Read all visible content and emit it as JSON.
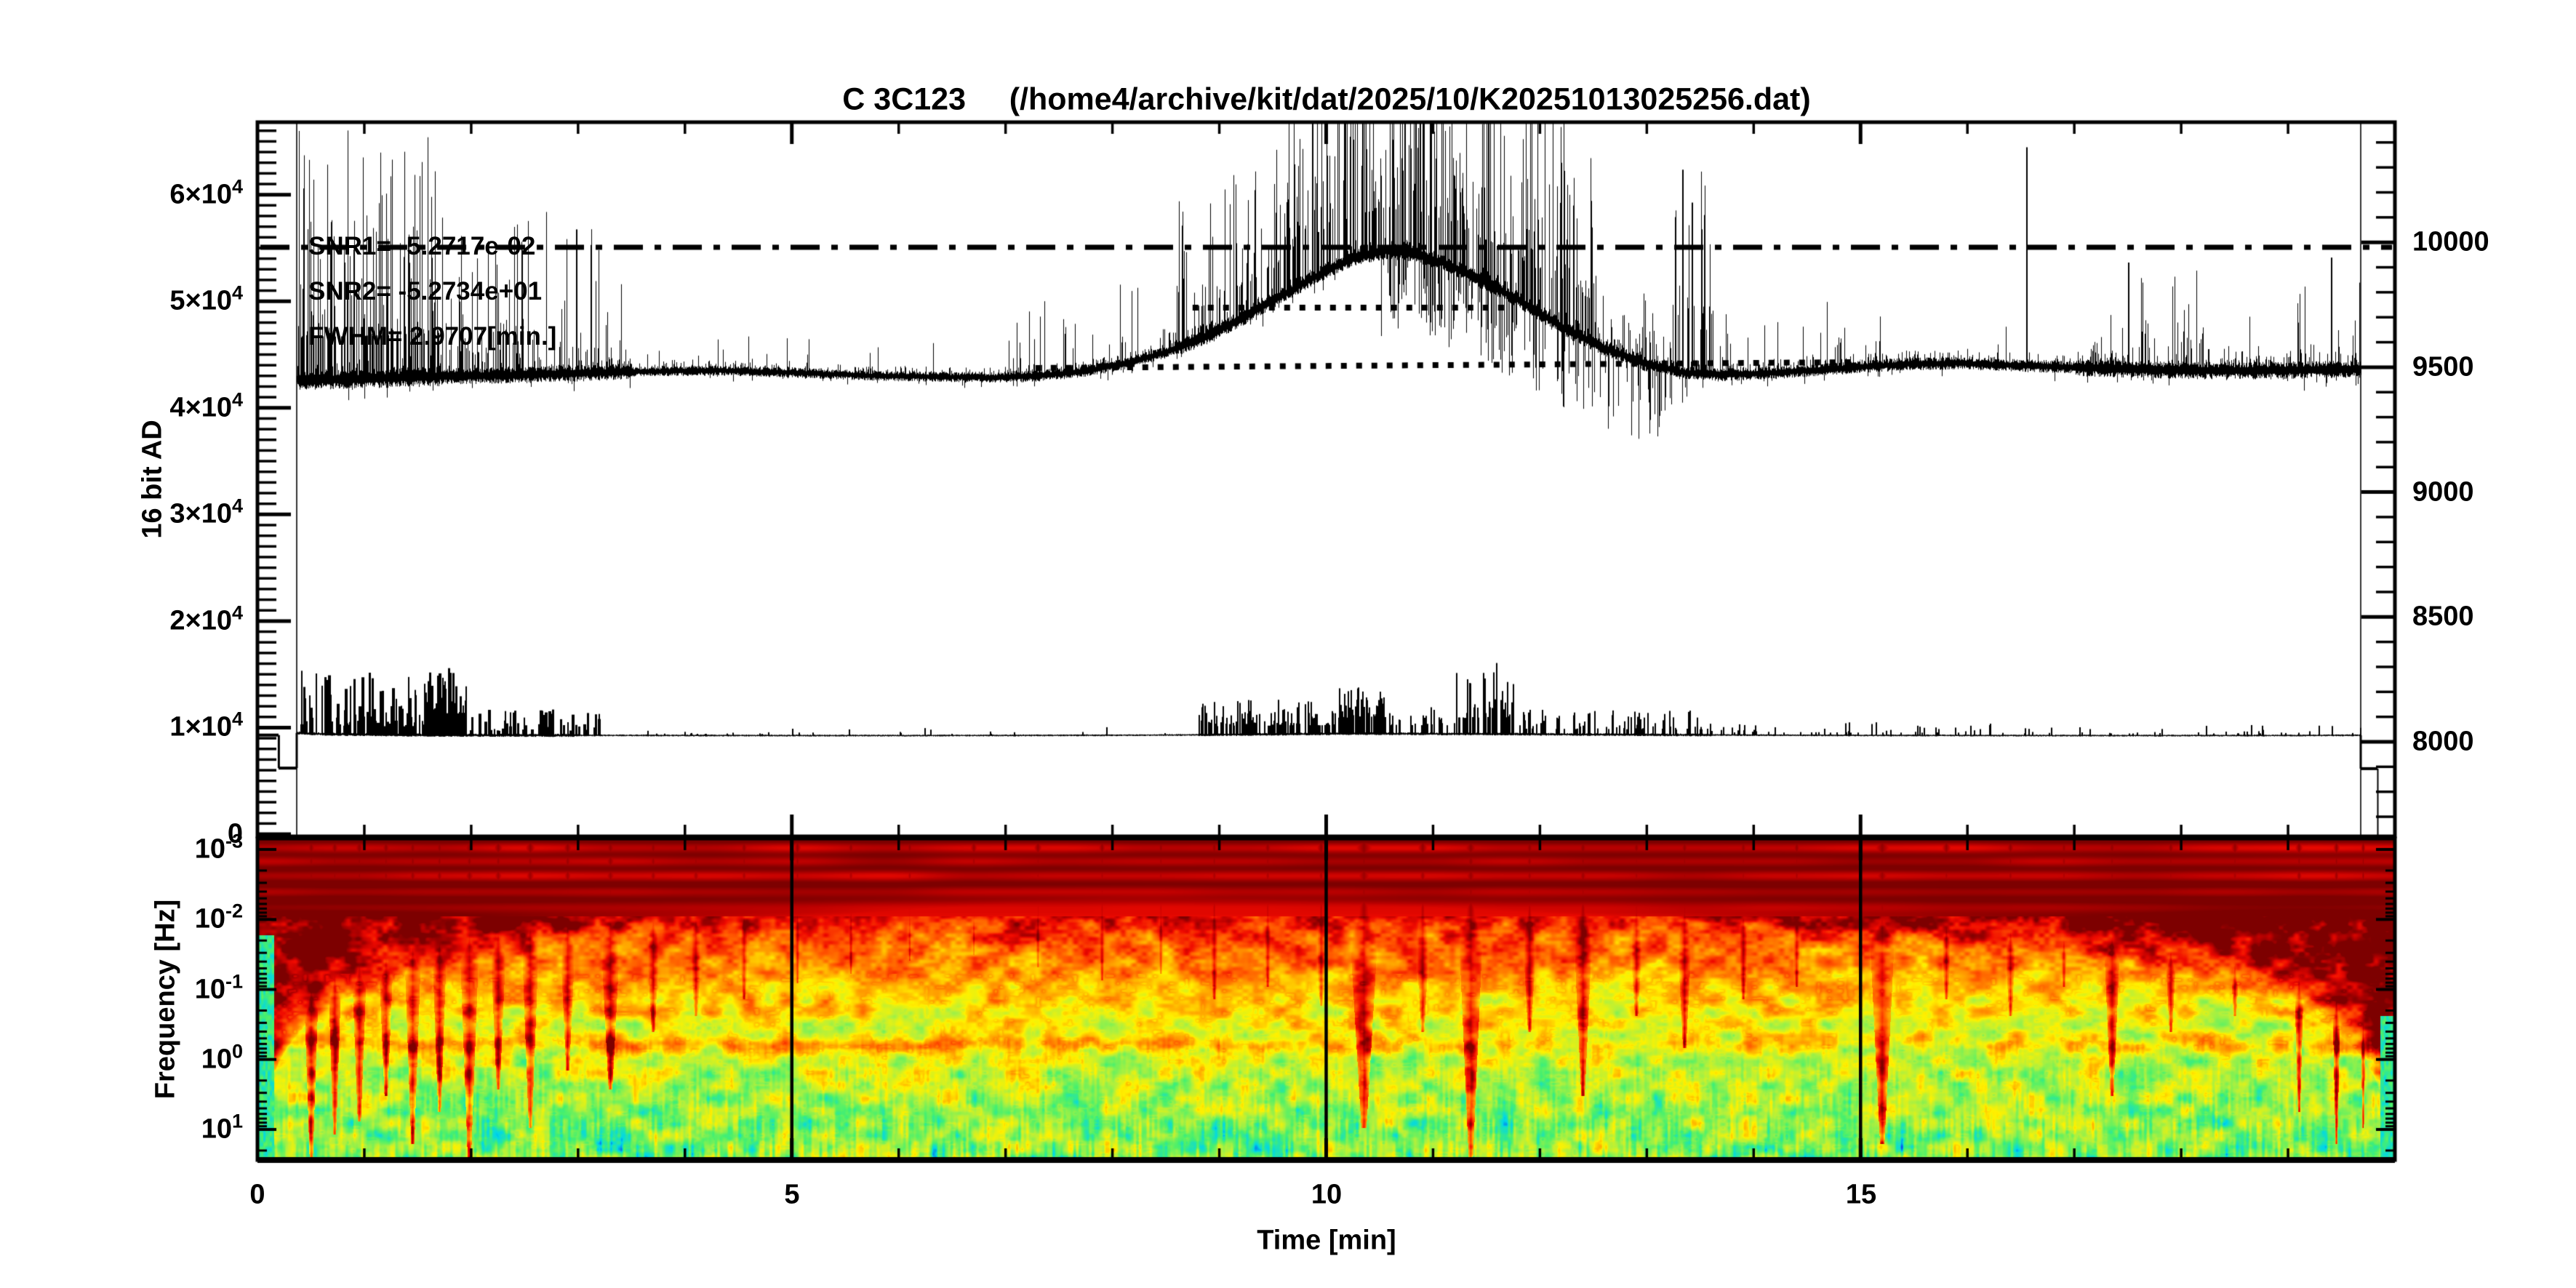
{
  "title": "C 3C123     (/home4/archive/kit/dat/2025/10/K20251013025256.dat)",
  "annotations": {
    "snr1": "SNR1= -5.2717e-02",
    "snr2": "SNR2= -5.2734e+01",
    "fwhm": "FWHM= 2.9707[min.]"
  },
  "axes": {
    "y_left": {
      "title": "16 bit AD",
      "ticks": [
        {
          "b": "6×10",
          "e": "4"
        },
        {
          "b": "5×10",
          "e": "4"
        },
        {
          "b": "4×10",
          "e": "4"
        },
        {
          "b": "3×10",
          "e": "4"
        },
        {
          "b": "2×10",
          "e": "4"
        },
        {
          "b": "1×10",
          "e": "4"
        },
        {
          "b": "0",
          "e": ""
        }
      ]
    },
    "y_right": {
      "ticks": [
        "10000",
        "9500",
        "9000",
        "8500",
        "8000"
      ]
    },
    "freq": {
      "title": "Frequency [Hz]",
      "ticks": [
        {
          "b": "10",
          "e": "-3"
        },
        {
          "b": "10",
          "e": "-2"
        },
        {
          "b": "10",
          "e": "-1"
        },
        {
          "b": "10",
          "e": "0"
        },
        {
          "b": "10",
          "e": "1"
        }
      ]
    },
    "x": {
      "title": "Time [min]",
      "ticks": [
        "0",
        "5",
        "10",
        "15"
      ]
    }
  },
  "chart_data": [
    {
      "type": "line",
      "title": "C 3C123",
      "source_file": "/home4/archive/kit/dat/2025/10/K20251013025256.dat",
      "xlabel": "Time [min]",
      "x_range": [
        0,
        20
      ],
      "ylabel": "16 bit AD",
      "y_left_range": [
        0,
        66700
      ],
      "y_right_range": [
        7620,
        10490
      ],
      "stats": {
        "snr1": -0.052717,
        "snr2": -52.734,
        "fwhm_min": 2.9707
      },
      "guides": {
        "dashdot_level": 55070,
        "fwhm_dotted": {
          "level": 49400,
          "t0": 8.75,
          "t1": 11.73
        },
        "baseline_dotted": {
          "t0": 7.28,
          "v0": 43740,
          "t1": 15.0,
          "v1": 44290
        }
      },
      "data_start_t": 0.37,
      "data_end_t": 19.68,
      "series": [
        {
          "name": "signal",
          "baseline": [
            [
              0.37,
              42600
            ],
            [
              0.8,
              42700
            ],
            [
              1.5,
              42900
            ],
            [
              2.5,
              43100
            ],
            [
              3.5,
              43400
            ],
            [
              4.3,
              43500
            ],
            [
              5.0,
              43300
            ],
            [
              5.8,
              43000
            ],
            [
              6.5,
              42900
            ],
            [
              6.9,
              42850
            ],
            [
              7.3,
              43000
            ],
            [
              7.7,
              43400
            ],
            [
              8.1,
              44100
            ],
            [
              8.5,
              45200
            ],
            [
              8.9,
              46800
            ],
            [
              9.3,
              48900
            ],
            [
              9.7,
              51200
            ],
            [
              10.0,
              52900
            ],
            [
              10.3,
              54200
            ],
            [
              10.55,
              54700
            ],
            [
              10.8,
              54500
            ],
            [
              11.1,
              53600
            ],
            [
              11.4,
              52200
            ],
            [
              11.8,
              50100
            ],
            [
              12.2,
              47600
            ],
            [
              12.6,
              45600
            ],
            [
              13.0,
              44100
            ],
            [
              13.35,
              43300
            ],
            [
              13.7,
              43100
            ],
            [
              14.2,
              43300
            ],
            [
              14.8,
              43700
            ],
            [
              15.4,
              44100
            ],
            [
              15.9,
              44200
            ],
            [
              16.4,
              44000
            ],
            [
              17.0,
              43800
            ],
            [
              17.6,
              43600
            ],
            [
              18.2,
              43500
            ],
            [
              18.8,
              43500
            ],
            [
              19.4,
              43600
            ],
            [
              19.95,
              43700
            ]
          ],
          "noise_regions": [
            [
              0.37,
              1.7,
              950
            ],
            [
              1.7,
              3.5,
              780
            ],
            [
              3.5,
              7,
              480
            ],
            [
              7,
              8.6,
              560
            ],
            [
              8.6,
              13,
              760
            ],
            [
              13,
              17,
              600
            ],
            [
              17,
              19.7,
              830
            ]
          ],
          "spike_regions": [
            [
              0.38,
              1.7,
              0.55,
              4000,
              24000
            ],
            [
              1.7,
              2.7,
              0.32,
              2000,
              15000
            ],
            [
              2.7,
              3.45,
              0.28,
              2000,
              15500
            ],
            [
              3.45,
              7.0,
              0.05,
              800,
              3500
            ],
            [
              7.0,
              8.6,
              0.13,
              1500,
              8000
            ],
            [
              8.6,
              9.6,
              0.38,
              3000,
              14000
            ],
            [
              9.6,
              12.5,
              0.55,
              4000,
              23000
            ],
            [
              12.5,
              13.25,
              0.28,
              2000,
              10000
            ],
            [
              13.25,
              13.6,
              0.5,
              4000,
              20000
            ],
            [
              13.6,
              14.6,
              0.07,
              1000,
              6000
            ],
            [
              14.6,
              15.15,
              0.15,
              2000,
              7000
            ],
            [
              15.15,
              16.4,
              0.06,
              1000,
              5000
            ],
            [
              17.15,
              18.45,
              0.2,
              2000,
              9500
            ],
            [
              18.45,
              19.05,
              0.09,
              1500,
              8000
            ],
            [
              19.05,
              19.68,
              0.16,
              1500,
              9000
            ]
          ],
          "spike_singles": [
            [
              13.33,
              19000
            ],
            [
              13.42,
              16000
            ],
            [
              16.55,
              20500
            ],
            [
              2.98,
              13500
            ],
            [
              3.12,
              12000
            ],
            [
              17.5,
              10000
            ],
            [
              19.4,
              10500
            ]
          ],
          "down_spike_window": [
            10.5,
            13.4
          ]
        },
        {
          "name": "reference",
          "baseline": [
            [
              0.37,
              9500
            ],
            [
              0.6,
              9400
            ],
            [
              1.0,
              9350
            ],
            [
              1.5,
              9300
            ],
            [
              2.5,
              9280
            ],
            [
              4,
              9260
            ],
            [
              6,
              9250
            ],
            [
              8,
              9280
            ],
            [
              8.8,
              9320
            ],
            [
              9.5,
              9380
            ],
            [
              10.2,
              9440
            ],
            [
              10.8,
              9420
            ],
            [
              11.5,
              9400
            ],
            [
              12.3,
              9360
            ],
            [
              13.2,
              9320
            ],
            [
              14.5,
              9280
            ],
            [
              16,
              9260
            ],
            [
              17.5,
              9250
            ],
            [
              19,
              9260
            ],
            [
              19.67,
              9280
            ]
          ],
          "noise_amp": 90,
          "spike_regions": [
            [
              0.38,
              1.55,
              0.5,
              800,
              6000
            ],
            [
              1.55,
              1.95,
              0.6,
              2000,
              6600
            ],
            [
              1.95,
              3.2,
              0.28,
              400,
              2600
            ],
            [
              3.2,
              8.8,
              0.05,
              150,
              800
            ],
            [
              8.8,
              10.1,
              0.45,
              800,
              3300
            ],
            [
              10.1,
              10.55,
              0.55,
              1500,
              4400
            ],
            [
              10.55,
              11.2,
              0.35,
              800,
              2700
            ],
            [
              11.2,
              11.75,
              0.5,
              1500,
              7300
            ],
            [
              11.75,
              13.6,
              0.3,
              500,
              2300
            ],
            [
              13.6,
              16.5,
              0.12,
              250,
              1300
            ],
            [
              16.5,
              19.68,
              0.08,
              200,
              1000
            ]
          ],
          "edge_steps": {
            "left_level": 9300,
            "left_dip": 6200,
            "left_dip_t": [
              0.2,
              0.37
            ],
            "right_dip": 6150,
            "right_dip_t": [
              19.68,
              19.84
            ]
          }
        }
      ]
    },
    {
      "type": "heatmap",
      "xlabel": "Time [min]",
      "x_range": [
        0,
        20
      ],
      "ylabel": "Frequency [Hz]",
      "freq_log_range": [
        -3.15,
        1.45
      ],
      "gridline_times": [
        5,
        10,
        15
      ],
      "colormap": [
        [
          0,
          "#1414E6"
        ],
        [
          0.13,
          "#00D8E8"
        ],
        [
          0.27,
          "#49F06E"
        ],
        [
          0.42,
          "#B4F03C"
        ],
        [
          0.54,
          "#FFF200"
        ],
        [
          0.66,
          "#FFA000"
        ],
        [
          0.78,
          "#FF5000"
        ],
        [
          0.87,
          "#F00A00"
        ],
        [
          0.94,
          "#B40000"
        ],
        [
          1,
          "#7D0000"
        ]
      ],
      "profile": [
        [
          0,
          1.03
        ],
        [
          0.17,
          1.0
        ],
        [
          0.3,
          0.76
        ],
        [
          0.45,
          0.61
        ],
        [
          0.6,
          0.5
        ],
        [
          0.75,
          0.43
        ],
        [
          1,
          0.34
        ]
      ],
      "edge_cone": {
        "scale_min": 30,
        "decay": 7.2,
        "right_factor": 1.4
      },
      "streaks": [
        [
          0.028,
          0.17
        ],
        [
          0.07,
          0.12
        ],
        [
          0.115,
          0.15
        ],
        [
          0.165,
          0.1
        ],
        [
          0.213,
          0.08
        ]
      ],
      "band": {
        "d": 0.638,
        "sigma": 0.017,
        "amp_left": 0.2,
        "amp_right": 0.11
      },
      "funnels": [
        [
          0.5,
          1.0,
          0.1
        ],
        [
          0.72,
          0.92,
          0.09
        ],
        [
          0.95,
          0.88,
          0.1
        ],
        [
          1.2,
          0.8,
          0.1
        ],
        [
          1.45,
          0.95,
          0.1
        ],
        [
          1.7,
          0.85,
          0.09
        ],
        [
          1.98,
          0.99,
          0.11
        ],
        [
          2.25,
          0.78,
          0.1
        ],
        [
          2.55,
          0.9,
          0.1
        ],
        [
          2.9,
          0.72,
          0.1
        ],
        [
          3.3,
          0.78,
          0.12
        ],
        [
          3.7,
          0.6,
          0.1
        ],
        [
          4.1,
          0.55,
          0.1
        ],
        [
          4.55,
          0.5,
          0.09
        ],
        [
          5.05,
          0.45,
          0.08
        ],
        [
          5.55,
          0.42,
          0.08
        ],
        [
          6.1,
          0.38,
          0.08
        ],
        [
          6.7,
          0.36,
          0.08
        ],
        [
          7.3,
          0.4,
          0.09
        ],
        [
          7.9,
          0.44,
          0.09
        ],
        [
          8.45,
          0.42,
          0.08
        ],
        [
          8.95,
          0.5,
          0.09
        ],
        [
          9.45,
          0.46,
          0.09
        ],
        [
          9.95,
          0.52,
          0.09
        ],
        [
          10.35,
          0.9,
          0.16
        ],
        [
          10.9,
          0.6,
          0.1
        ],
        [
          11.35,
          1.0,
          0.13
        ],
        [
          11.9,
          0.6,
          0.1
        ],
        [
          12.4,
          0.8,
          0.11
        ],
        [
          12.9,
          0.55,
          0.1
        ],
        [
          13.35,
          0.65,
          0.1
        ],
        [
          13.9,
          0.5,
          0.09
        ],
        [
          14.4,
          0.46,
          0.09
        ],
        [
          15.2,
          0.95,
          0.14
        ],
        [
          15.8,
          0.5,
          0.09
        ],
        [
          16.4,
          0.55,
          0.09
        ],
        [
          16.9,
          0.46,
          0.08
        ],
        [
          17.35,
          0.8,
          0.1
        ],
        [
          17.9,
          0.6,
          0.09
        ],
        [
          18.5,
          0.55,
          0.09
        ],
        [
          19.1,
          0.85,
          0.07
        ],
        [
          19.45,
          0.95,
          0.06
        ],
        [
          19.7,
          0.9,
          0.045
        ]
      ]
    }
  ]
}
